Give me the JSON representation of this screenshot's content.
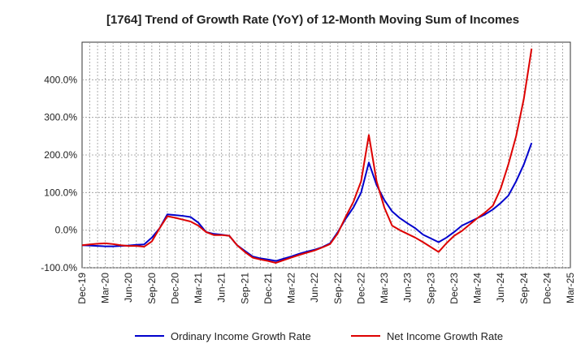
{
  "chart_data": {
    "type": "line",
    "title": "[1764]  Trend of Growth Rate (YoY) of 12-Month Moving Sum of Incomes",
    "xlabel": "",
    "ylabel": "",
    "ylim": [
      -100,
      500
    ],
    "yticks": [
      -100,
      0,
      100,
      200,
      300,
      400
    ],
    "ytick_labels": [
      "-100.0%",
      "0.0%",
      "100.0%",
      "200.0%",
      "300.0%",
      "400.0%"
    ],
    "xticks": [
      "Dec-19",
      "Mar-20",
      "Jun-20",
      "Sep-20",
      "Dec-20",
      "Mar-21",
      "Jun-21",
      "Sep-21",
      "Dec-21",
      "Mar-22",
      "Jun-22",
      "Sep-22",
      "Dec-22",
      "Mar-23",
      "Jun-23",
      "Sep-23",
      "Dec-23",
      "Mar-24",
      "Jun-24",
      "Sep-24",
      "Dec-24",
      "Mar-25"
    ],
    "grid": true,
    "legend_position": "bottom",
    "series": [
      {
        "name": "Ordinary Income Growth Rate",
        "color": "#0000cc",
        "values": [
          -40,
          -41,
          -42,
          -43,
          -43,
          -42,
          -41,
          -39,
          -38,
          -20,
          5,
          42,
          40,
          38,
          35,
          20,
          -5,
          -10,
          -12,
          -15,
          -40,
          -55,
          -70,
          -75,
          -78,
          -82,
          -76,
          -70,
          -63,
          -57,
          -52,
          -45,
          -35,
          -5,
          30,
          60,
          100,
          180,
          120,
          80,
          50,
          32,
          18,
          5,
          -12,
          -22,
          -32,
          -20,
          -5,
          12,
          22,
          32,
          42,
          55,
          72,
          92,
          130,
          175,
          232
        ]
      },
      {
        "name": "Net Income Growth Rate",
        "color": "#dd0000",
        "values": [
          -40,
          -38,
          -36,
          -35,
          -37,
          -40,
          -42,
          -42,
          -44,
          -30,
          5,
          37,
          33,
          28,
          23,
          12,
          -5,
          -13,
          -13,
          -15,
          -40,
          -58,
          -73,
          -78,
          -82,
          -87,
          -80,
          -73,
          -66,
          -60,
          -54,
          -46,
          -37,
          -8,
          35,
          75,
          130,
          253,
          130,
          60,
          12,
          0,
          -10,
          -20,
          -32,
          -45,
          -58,
          -35,
          -15,
          -2,
          15,
          32,
          47,
          65,
          110,
          175,
          250,
          350,
          483
        ]
      }
    ]
  }
}
